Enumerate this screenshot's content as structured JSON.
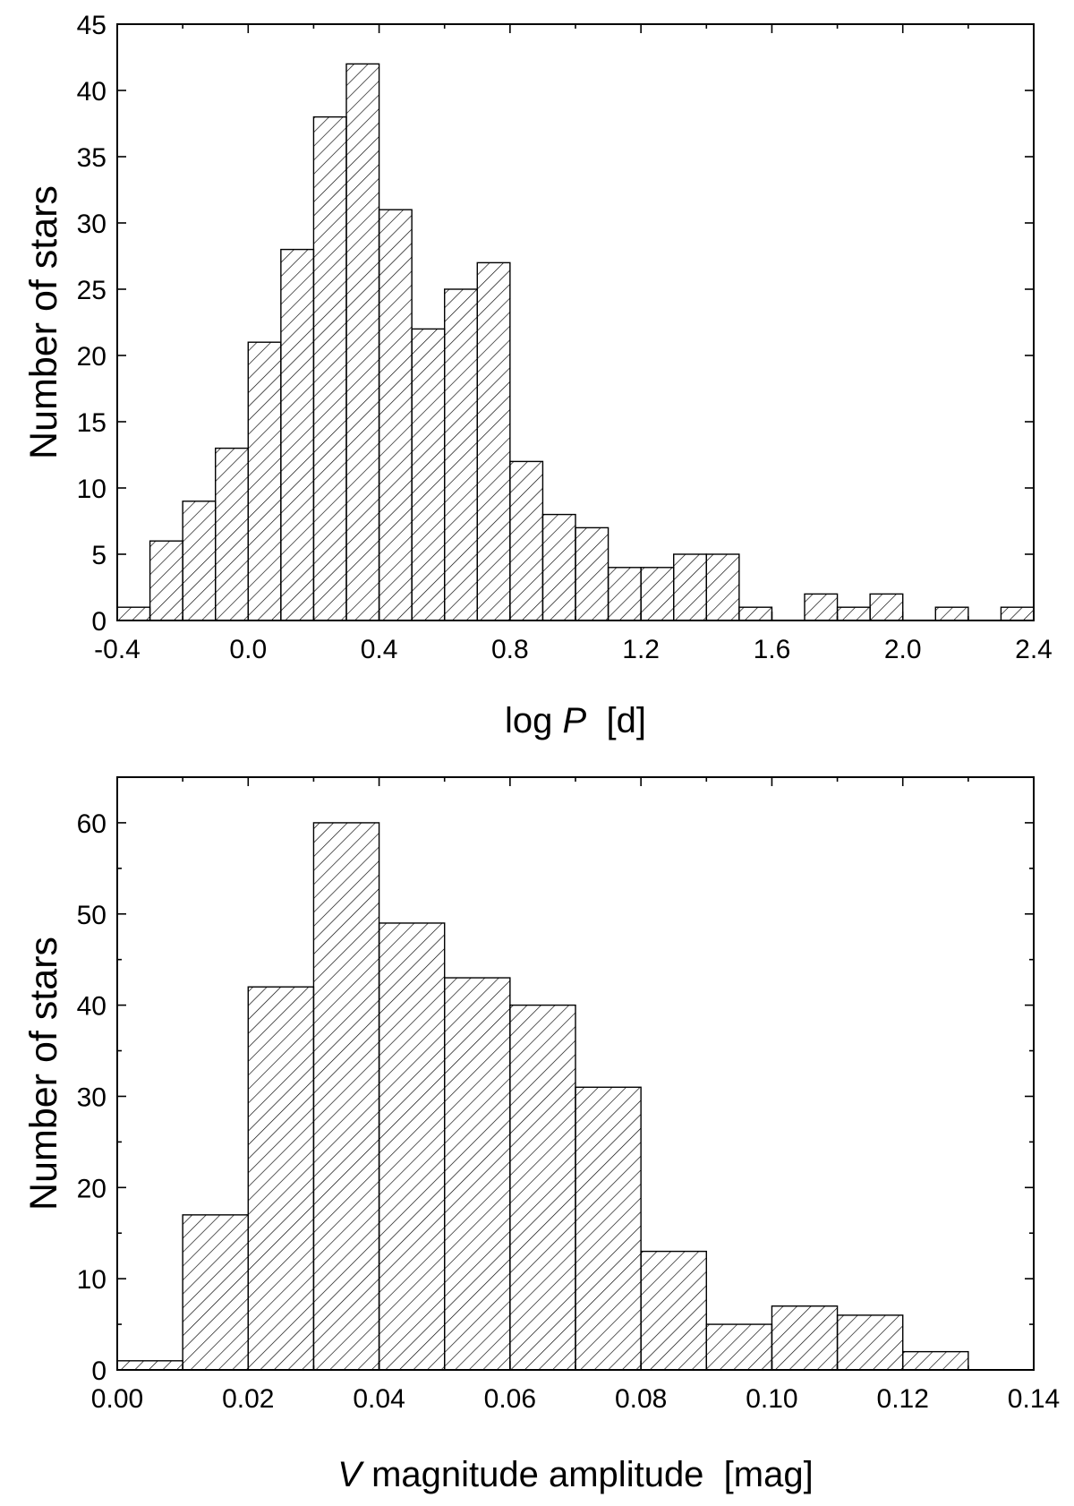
{
  "chart_data": [
    {
      "type": "bar",
      "subtype": "histogram",
      "bin_edges": [
        -0.4,
        -0.3,
        -0.2,
        -0.1,
        0.0,
        0.1,
        0.2,
        0.3,
        0.4,
        0.5,
        0.6,
        0.7,
        0.8,
        0.9,
        1.0,
        1.1,
        1.2,
        1.3,
        1.4,
        1.5,
        1.6,
        1.7,
        1.8,
        1.9,
        2.0,
        2.1,
        2.2,
        2.3,
        2.4
      ],
      "values": [
        1,
        6,
        9,
        13,
        21,
        28,
        38,
        42,
        31,
        22,
        25,
        27,
        12,
        8,
        7,
        4,
        4,
        5,
        5,
        1,
        0,
        2,
        1,
        2,
        0,
        1,
        0,
        1
      ],
      "xlabel": {
        "pre": "log ",
        "italic": "P",
        "post": "  [d]"
      },
      "ylabel": "Number of stars",
      "xlim": [
        -0.4,
        2.4
      ],
      "ylim": [
        0,
        45
      ],
      "x_ticks": [
        -0.4,
        0.0,
        0.4,
        0.8,
        1.2,
        1.6,
        2.0,
        2.4
      ],
      "x_tick_labels": [
        "-0.4",
        "0.0",
        "0.4",
        "0.8",
        "1.2",
        "1.6",
        "2.0",
        "2.4"
      ],
      "x_minor_step": 0.2,
      "y_ticks": [
        0,
        5,
        10,
        15,
        20,
        25,
        30,
        35,
        40,
        45
      ],
      "y_tick_labels": [
        "0",
        "5",
        "10",
        "15",
        "20",
        "25",
        "30",
        "35",
        "40",
        "45"
      ],
      "fill": "diagonal hatch",
      "grid": false
    },
    {
      "type": "bar",
      "subtype": "histogram",
      "bin_edges": [
        0.0,
        0.01,
        0.02,
        0.03,
        0.04,
        0.05,
        0.06,
        0.07,
        0.08,
        0.09,
        0.1,
        0.11,
        0.12,
        0.13
      ],
      "values": [
        1,
        17,
        42,
        60,
        49,
        43,
        40,
        31,
        13,
        5,
        7,
        6,
        2
      ],
      "xlabel": {
        "pre": "",
        "italic": "V",
        "post": " magnitude amplitude  [mag]"
      },
      "ylabel": "Number of stars",
      "xlim": [
        0.0,
        0.14
      ],
      "ylim": [
        0,
        65
      ],
      "x_ticks": [
        0.0,
        0.02,
        0.04,
        0.06,
        0.08,
        0.1,
        0.12,
        0.14
      ],
      "x_tick_labels": [
        "0.00",
        "0.02",
        "0.04",
        "0.06",
        "0.08",
        "0.10",
        "0.12",
        "0.14"
      ],
      "x_minor_step": 0.01,
      "y_ticks": [
        0,
        10,
        20,
        30,
        40,
        50,
        60
      ],
      "y_tick_labels": [
        "0",
        "10",
        "20",
        "30",
        "40",
        "50",
        "60"
      ],
      "y_minor_step": 5,
      "fill": "diagonal hatch",
      "grid": false
    }
  ]
}
